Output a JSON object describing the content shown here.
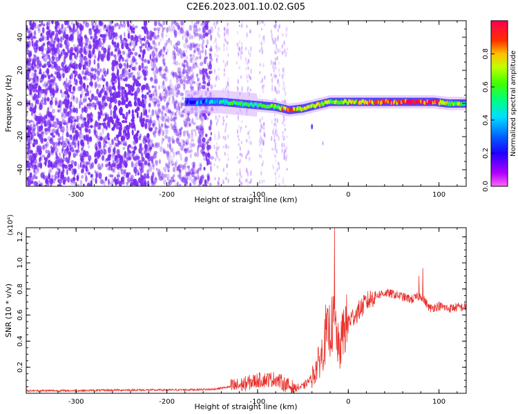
{
  "title": "C2E6.2023.001.10.02.G05",
  "colors": {
    "noise": "#7a2cf0",
    "snr_line": "#e8302a",
    "colorbar": [
      "#ff00ff",
      "#7a00ff",
      "#0000ff",
      "#00c8ff",
      "#00ff80",
      "#80ff00",
      "#ffff00",
      "#ff8000",
      "#ff0000",
      "#ff0060"
    ]
  },
  "chart_data": [
    {
      "type": "heatmap",
      "title": "C2E6.2023.001.10.02.G05",
      "xlabel": "Height of straight line (km)",
      "ylabel": "Frequency (Hz)",
      "xlim": [
        -355,
        130
      ],
      "ylim": [
        -50,
        50
      ],
      "x_ticks": [
        -300,
        -200,
        -100,
        0,
        100
      ],
      "x_tick_labels": [
        "-300",
        "-200",
        "-100",
        "0",
        "100"
      ],
      "y_ticks": [
        -40,
        -20,
        0,
        20,
        40
      ],
      "y_tick_labels": [
        "-40",
        "-20",
        "0",
        "20",
        "40"
      ],
      "colorbar": {
        "label": "Normalized spectral amplitude",
        "range": [
          0,
          1
        ],
        "ticks": [
          0.0,
          0.2,
          0.4,
          0.6,
          0.8
        ],
        "tick_labels": [
          "0.0",
          "0.2",
          "0.4",
          "0.6",
          "0.8"
        ]
      },
      "ridge_center_hz": {
        "x": [
          -180,
          -160,
          -140,
          -120,
          -100,
          -80,
          -65,
          -50,
          -35,
          -20,
          0,
          20,
          40,
          60,
          80,
          95,
          110,
          130
        ],
        "y": [
          1,
          1,
          1,
          0,
          -1,
          -2,
          -4,
          -3,
          -1,
          1,
          1,
          1,
          1,
          1,
          1,
          1,
          0,
          0
        ]
      },
      "ridge_amplitude": {
        "x": [
          -180,
          -160,
          -140,
          -120,
          -100,
          -80,
          -65,
          -50,
          -35,
          -20,
          0,
          20,
          40,
          60,
          80,
          95,
          110,
          130
        ],
        "y": [
          0.15,
          0.25,
          0.4,
          0.45,
          0.5,
          0.55,
          0.85,
          0.65,
          0.7,
          0.6,
          0.65,
          0.75,
          0.85,
          0.8,
          0.9,
          0.85,
          0.6,
          0.5
        ]
      }
    },
    {
      "type": "line",
      "xlabel": "Height of straight line (km)",
      "ylabel": "SNR (10 * v/v)",
      "y_scale_label": "(x10⁴)",
      "xlim": [
        -355,
        130
      ],
      "ylim": [
        0,
        1.27
      ],
      "x_ticks": [
        -300,
        -200,
        -100,
        0,
        100
      ],
      "x_tick_labels": [
        "-300",
        "-200",
        "-100",
        "0",
        "100"
      ],
      "y_ticks": [
        0.2,
        0.4,
        0.6,
        0.8,
        1.0,
        1.2
      ],
      "y_tick_labels": [
        "0.2",
        "0.4",
        "0.6",
        "0.8",
        "1.0",
        "1.2"
      ],
      "series": [
        {
          "x": [
            -355,
            -300,
            -250,
            -200,
            -150,
            -120,
            -100,
            -80,
            -70,
            -60,
            -50,
            -40,
            -30,
            -25,
            -20,
            -15,
            -10,
            -5,
            0,
            10,
            20,
            30,
            40,
            50,
            60,
            70,
            80,
            90,
            100,
            110,
            120,
            130
          ],
          "y": [
            0.02,
            0.02,
            0.025,
            0.025,
            0.03,
            0.06,
            0.1,
            0.11,
            0.07,
            0.04,
            0.05,
            0.12,
            0.28,
            0.42,
            0.5,
            0.55,
            0.3,
            0.5,
            0.55,
            0.62,
            0.7,
            0.75,
            0.77,
            0.76,
            0.74,
            0.72,
            0.75,
            0.65,
            0.67,
            0.65,
            0.66,
            0.66
          ],
          "spikes": [
            {
              "x": -15,
              "y": 1.27
            },
            {
              "x": -25,
              "y": 0.68
            },
            {
              "x": 82,
              "y": 0.96
            },
            {
              "x": 78,
              "y": 0.9
            }
          ]
        }
      ]
    }
  ]
}
